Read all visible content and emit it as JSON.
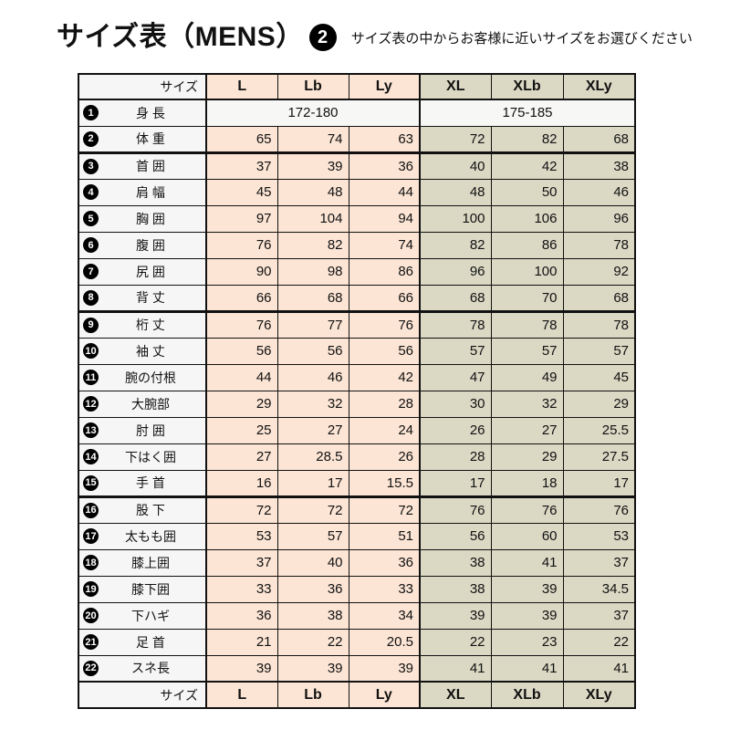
{
  "page": {
    "title": "サイズ表（MENS）",
    "title_badge": "2",
    "subtitle": "サイズ表の中からお客様に近いサイズをお選びください"
  },
  "colors": {
    "l_group_bg": "#fce5d5",
    "xl_group_bg": "#dbd8c4",
    "label_bg": "#f6f6f6",
    "height_row_bg": "#f7f7f5",
    "border": "#111111",
    "badge_bg": "#000000",
    "badge_text": "#ffffff"
  },
  "table": {
    "corner_label": "サイズ",
    "size_headers": [
      "L",
      "Lb",
      "Ly",
      "XL",
      "XLb",
      "XLy"
    ],
    "height_row": {
      "num": "1",
      "label": "身 長",
      "l_group_value": "172-180",
      "xl_group_value": "175-185"
    },
    "rows": [
      {
        "num": "2",
        "label": "体 重",
        "values": [
          "65",
          "74",
          "63",
          "72",
          "82",
          "68"
        ]
      },
      {
        "num": "3",
        "label": "首 囲",
        "values": [
          "37",
          "39",
          "36",
          "40",
          "42",
          "38"
        ],
        "section_start": true
      },
      {
        "num": "4",
        "label": "肩 幅",
        "values": [
          "45",
          "48",
          "44",
          "48",
          "50",
          "46"
        ]
      },
      {
        "num": "5",
        "label": "胸 囲",
        "values": [
          "97",
          "104",
          "94",
          "100",
          "106",
          "96"
        ]
      },
      {
        "num": "6",
        "label": "腹 囲",
        "values": [
          "76",
          "82",
          "74",
          "82",
          "86",
          "78"
        ]
      },
      {
        "num": "7",
        "label": "尻 囲",
        "values": [
          "90",
          "98",
          "86",
          "96",
          "100",
          "92"
        ]
      },
      {
        "num": "8",
        "label": "背 丈",
        "values": [
          "66",
          "68",
          "66",
          "68",
          "70",
          "68"
        ]
      },
      {
        "num": "9",
        "label": "桁 丈",
        "values": [
          "76",
          "77",
          "76",
          "78",
          "78",
          "78"
        ],
        "section_start": true
      },
      {
        "num": "10",
        "label": "袖 丈",
        "values": [
          "56",
          "56",
          "56",
          "57",
          "57",
          "57"
        ]
      },
      {
        "num": "11",
        "label": "腕の付根",
        "values": [
          "44",
          "46",
          "42",
          "47",
          "49",
          "45"
        ]
      },
      {
        "num": "12",
        "label": "大腕部",
        "values": [
          "29",
          "32",
          "28",
          "30",
          "32",
          "29"
        ]
      },
      {
        "num": "13",
        "label": "肘 囲",
        "values": [
          "25",
          "27",
          "24",
          "26",
          "27",
          "25.5"
        ]
      },
      {
        "num": "14",
        "label": "下はく囲",
        "values": [
          "27",
          "28.5",
          "26",
          "28",
          "29",
          "27.5"
        ]
      },
      {
        "num": "15",
        "label": "手 首",
        "values": [
          "16",
          "17",
          "15.5",
          "17",
          "18",
          "17"
        ]
      },
      {
        "num": "16",
        "label": "股 下",
        "values": [
          "72",
          "72",
          "72",
          "76",
          "76",
          "76"
        ],
        "section_start": true
      },
      {
        "num": "17",
        "label": "太もも囲",
        "values": [
          "53",
          "57",
          "51",
          "56",
          "60",
          "53"
        ]
      },
      {
        "num": "18",
        "label": "膝上囲",
        "values": [
          "37",
          "40",
          "36",
          "38",
          "41",
          "37"
        ]
      },
      {
        "num": "19",
        "label": "膝下囲",
        "values": [
          "33",
          "36",
          "33",
          "38",
          "39",
          "34.5"
        ]
      },
      {
        "num": "20",
        "label": "下ハギ",
        "values": [
          "36",
          "38",
          "34",
          "39",
          "39",
          "37"
        ]
      },
      {
        "num": "21",
        "label": "足 首",
        "values": [
          "21",
          "22",
          "20.5",
          "22",
          "23",
          "22"
        ]
      },
      {
        "num": "22",
        "label": "スネ長",
        "values": [
          "39",
          "39",
          "39",
          "41",
          "41",
          "41"
        ]
      }
    ]
  }
}
